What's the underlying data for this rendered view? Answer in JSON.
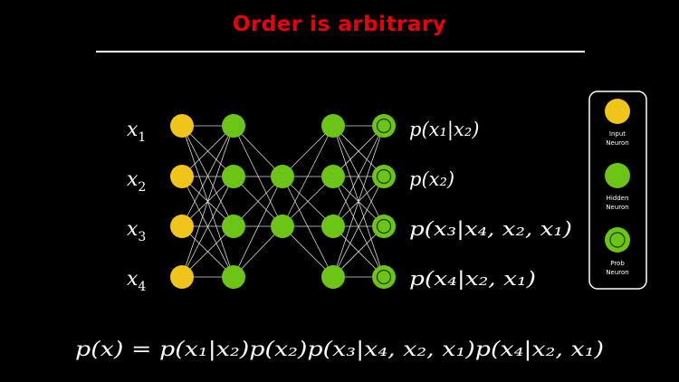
{
  "title": "Order is arbitrary",
  "colors": {
    "title": "#e8000b",
    "input_neuron": "#f0c419",
    "hidden_neuron": "#6cc417",
    "background": "#000000"
  },
  "inputs": [
    {
      "var": "x",
      "sub": "1"
    },
    {
      "var": "x",
      "sub": "2"
    },
    {
      "var": "x",
      "sub": "3"
    },
    {
      "var": "x",
      "sub": "4"
    }
  ],
  "outputs": [
    {
      "id": "p-x1-given-x2",
      "text": "p(x₁|x₂)"
    },
    {
      "id": "p-x2",
      "text": "p(x₂)"
    },
    {
      "id": "p-x3-given-x4-x2-x1",
      "text": "p(x₃|x₄, x₂, x₁)"
    },
    {
      "id": "p-x4-given-x2-x1",
      "text": "p(x₄|x₂, x₁)"
    }
  ],
  "legend": [
    {
      "type": "input",
      "label": [
        "Input",
        "Neuron"
      ]
    },
    {
      "type": "hidden",
      "label": [
        "Hidden",
        "Neuron"
      ]
    },
    {
      "type": "prob",
      "label": [
        "Prob",
        "Neuron"
      ]
    }
  ],
  "formula": "p(x) = p(x₁|x₂)p(x₂)p(x₃|x₄, x₂, x₁)p(x₄|x₂, x₁)"
}
